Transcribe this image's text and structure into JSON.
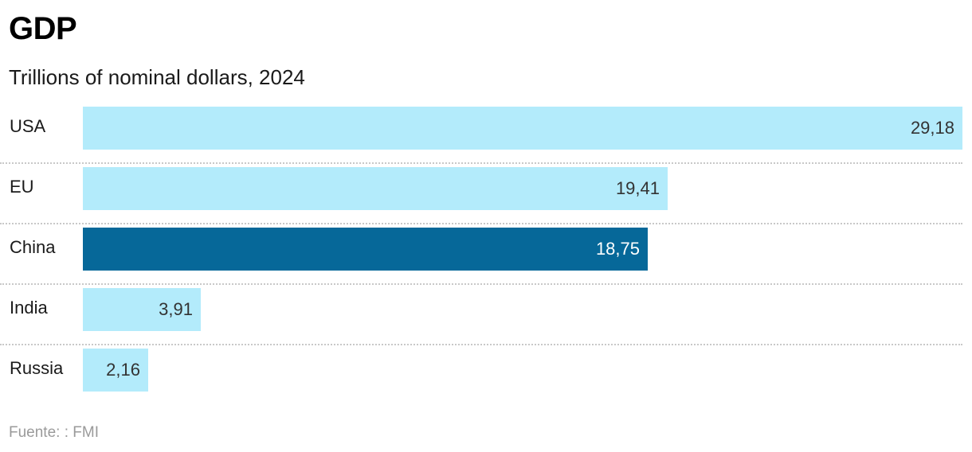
{
  "title": "GDP",
  "subtitle": "Trillions of nominal dollars, 2024",
  "source": "Fuente: : FMI",
  "colors": {
    "bar_default": "#b3ebfb",
    "bar_highlight": "#066899",
    "label_default": "#333333",
    "label_highlight": "#ffffff"
  },
  "chart_data": {
    "type": "bar",
    "orientation": "horizontal",
    "title": "GDP",
    "subtitle": "Trillions of nominal dollars, 2024",
    "categories": [
      "USA",
      "EU",
      "China",
      "India",
      "Russia"
    ],
    "values": [
      29.18,
      19.41,
      18.75,
      3.91,
      2.16
    ],
    "value_labels": [
      "29,18",
      "19,41",
      "18,75",
      "3,91",
      "2,16"
    ],
    "highlight": "China",
    "xlim": [
      0,
      29.18
    ],
    "grid": false,
    "legend": "none"
  }
}
